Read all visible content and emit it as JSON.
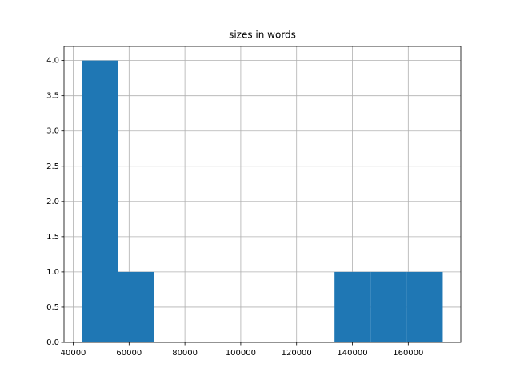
{
  "chart_data": {
    "type": "histogram",
    "title": "sizes in words",
    "bins": [
      43160,
      56080,
      69000,
      81920,
      94840,
      107760,
      120680,
      133600,
      146520,
      159440,
      172360
    ],
    "counts": [
      4,
      1,
      0,
      0,
      0,
      0,
      0,
      1,
      1,
      1
    ],
    "color": "#1f77b4",
    "xlim": [
      36700,
      178820
    ],
    "xticks": [
      40000,
      60000,
      80000,
      100000,
      120000,
      140000,
      160000
    ],
    "ylim": [
      0,
      4.2
    ],
    "yticks": [
      {
        "value": 0,
        "label": "0.0"
      },
      {
        "value": 0.5,
        "label": "0.5"
      },
      {
        "value": 1,
        "label": "1.0"
      },
      {
        "value": 1.5,
        "label": "1.5"
      },
      {
        "value": 2,
        "label": "2.0"
      },
      {
        "value": 2.5,
        "label": "2.5"
      },
      {
        "value": 3,
        "label": "3.0"
      },
      {
        "value": 3.5,
        "label": "3.5"
      },
      {
        "value": 4,
        "label": "4.0"
      }
    ],
    "grid": true
  }
}
